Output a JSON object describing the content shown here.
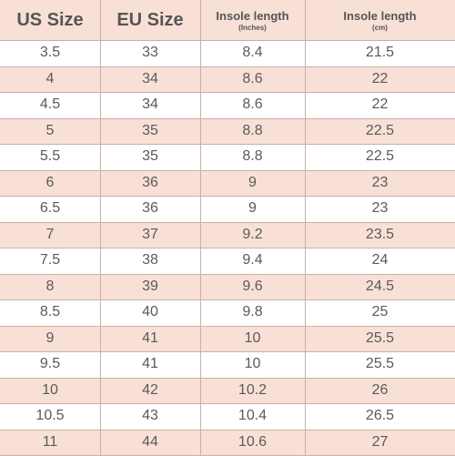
{
  "headers": [
    {
      "label": "US Size",
      "unit": ""
    },
    {
      "label": "EU Size",
      "unit": ""
    },
    {
      "label": "Insole length",
      "unit": "(Inches)"
    },
    {
      "label": "Insole length",
      "unit": "(cm)"
    }
  ],
  "rows": [
    [
      "3.5",
      "33",
      "8.4",
      "21.5"
    ],
    [
      "4",
      "34",
      "8.6",
      "22"
    ],
    [
      "4.5",
      "34",
      "8.6",
      "22"
    ],
    [
      "5",
      "35",
      "8.8",
      "22.5"
    ],
    [
      "5.5",
      "35",
      "8.8",
      "22.5"
    ],
    [
      "6",
      "36",
      "9",
      "23"
    ],
    [
      "6.5",
      "36",
      "9",
      "23"
    ],
    [
      "7",
      "37",
      "9.2",
      "23.5"
    ],
    [
      "7.5",
      "38",
      "9.4",
      "24"
    ],
    [
      "8",
      "39",
      "9.6",
      "24.5"
    ],
    [
      "8.5",
      "40",
      "9.8",
      "25"
    ],
    [
      "9",
      "41",
      "10",
      "25.5"
    ],
    [
      "9.5",
      "41",
      "10",
      "25.5"
    ],
    [
      "10",
      "42",
      "10.2",
      "26"
    ],
    [
      "10.5",
      "43",
      "10.4",
      "26.5"
    ],
    [
      "11",
      "44",
      "10.6",
      "27"
    ]
  ],
  "colors": {
    "header_bg": "#f9e0d6",
    "stripe": "#f9e0d6",
    "text": "#5a5a5a",
    "grid": "#c9b0a6"
  }
}
